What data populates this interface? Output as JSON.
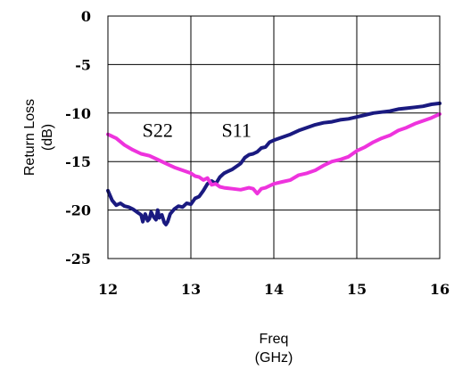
{
  "chart_data": {
    "type": "line",
    "title": "",
    "xlabel": [
      "Freq",
      "(GHz)"
    ],
    "ylabel": [
      "Return Loss",
      "(dB)"
    ],
    "xlim": [
      12,
      16
    ],
    "ylim": [
      -25,
      0
    ],
    "x_ticks": [
      12,
      13,
      14,
      15,
      16
    ],
    "y_ticks": [
      0,
      -5,
      -10,
      -15,
      -20,
      -25
    ],
    "x_tick_labels": [
      "12",
      "13",
      "14",
      "15",
      "16"
    ],
    "y_tick_labels": [
      "0",
      "-5",
      "-10",
      "-15",
      "-20",
      "-25"
    ],
    "grid": true,
    "series": [
      {
        "name": "S11",
        "color": "#1a1a80",
        "x": [
          12.0,
          12.05,
          12.1,
          12.15,
          12.2,
          12.25,
          12.3,
          12.35,
          12.4,
          12.42,
          12.45,
          12.48,
          12.5,
          12.52,
          12.55,
          12.58,
          12.6,
          12.62,
          12.65,
          12.68,
          12.7,
          12.72,
          12.75,
          12.8,
          12.85,
          12.9,
          12.95,
          13.0,
          13.05,
          13.1,
          13.15,
          13.2,
          13.25,
          13.3,
          13.35,
          13.4,
          13.45,
          13.5,
          13.55,
          13.6,
          13.65,
          13.7,
          13.75,
          13.8,
          13.85,
          13.9,
          13.95,
          14.0,
          14.1,
          14.2,
          14.3,
          14.4,
          14.5,
          14.6,
          14.7,
          14.8,
          14.9,
          15.0,
          15.1,
          15.2,
          15.3,
          15.4,
          15.5,
          15.6,
          15.7,
          15.8,
          15.9,
          16.0
        ],
        "y": [
          -18.0,
          -19.0,
          -19.5,
          -19.3,
          -19.6,
          -19.7,
          -19.9,
          -20.2,
          -20.5,
          -21.2,
          -20.4,
          -21.1,
          -20.9,
          -20.2,
          -20.7,
          -21.0,
          -20.0,
          -20.8,
          -20.5,
          -21.3,
          -21.5,
          -21.2,
          -20.4,
          -19.9,
          -19.6,
          -19.7,
          -19.3,
          -19.4,
          -18.8,
          -18.6,
          -18.0,
          -17.3,
          -17.0,
          -17.3,
          -16.6,
          -16.2,
          -16.0,
          -15.8,
          -15.5,
          -15.2,
          -14.6,
          -14.3,
          -14.2,
          -14.0,
          -13.6,
          -13.5,
          -13.0,
          -12.8,
          -12.5,
          -12.2,
          -11.8,
          -11.5,
          -11.2,
          -11.0,
          -10.9,
          -10.7,
          -10.6,
          -10.4,
          -10.2,
          -10.0,
          -9.9,
          -9.8,
          -9.6,
          -9.5,
          -9.4,
          -9.3,
          -9.1,
          -9.0
        ]
      },
      {
        "name": "S22",
        "color": "#ee33dd",
        "x": [
          12.0,
          12.1,
          12.2,
          12.3,
          12.4,
          12.5,
          12.6,
          12.7,
          12.8,
          12.9,
          13.0,
          13.05,
          13.1,
          13.15,
          13.2,
          13.25,
          13.3,
          13.35,
          13.4,
          13.5,
          13.6,
          13.7,
          13.75,
          13.8,
          13.85,
          13.9,
          14.0,
          14.1,
          14.2,
          14.3,
          14.4,
          14.5,
          14.6,
          14.7,
          14.8,
          14.9,
          15.0,
          15.1,
          15.2,
          15.3,
          15.4,
          15.5,
          15.6,
          15.7,
          15.8,
          15.9,
          16.0
        ],
        "y": [
          -12.2,
          -12.6,
          -13.3,
          -13.8,
          -14.2,
          -14.4,
          -14.8,
          -15.2,
          -15.6,
          -15.9,
          -16.2,
          -16.5,
          -16.6,
          -16.9,
          -16.7,
          -17.4,
          -17.3,
          -17.6,
          -17.7,
          -17.8,
          -17.9,
          -17.7,
          -17.8,
          -18.3,
          -17.8,
          -17.7,
          -17.3,
          -17.1,
          -16.9,
          -16.4,
          -16.2,
          -15.9,
          -15.4,
          -15.0,
          -14.8,
          -14.5,
          -13.9,
          -13.5,
          -13.0,
          -12.6,
          -12.3,
          -11.8,
          -11.5,
          -11.1,
          -10.8,
          -10.5,
          -10.1
        ]
      }
    ],
    "annotations": [
      {
        "text": "S22",
        "x": 12.6,
        "y": -11.7
      },
      {
        "text": "S11",
        "x": 13.55,
        "y": -11.7
      }
    ]
  }
}
